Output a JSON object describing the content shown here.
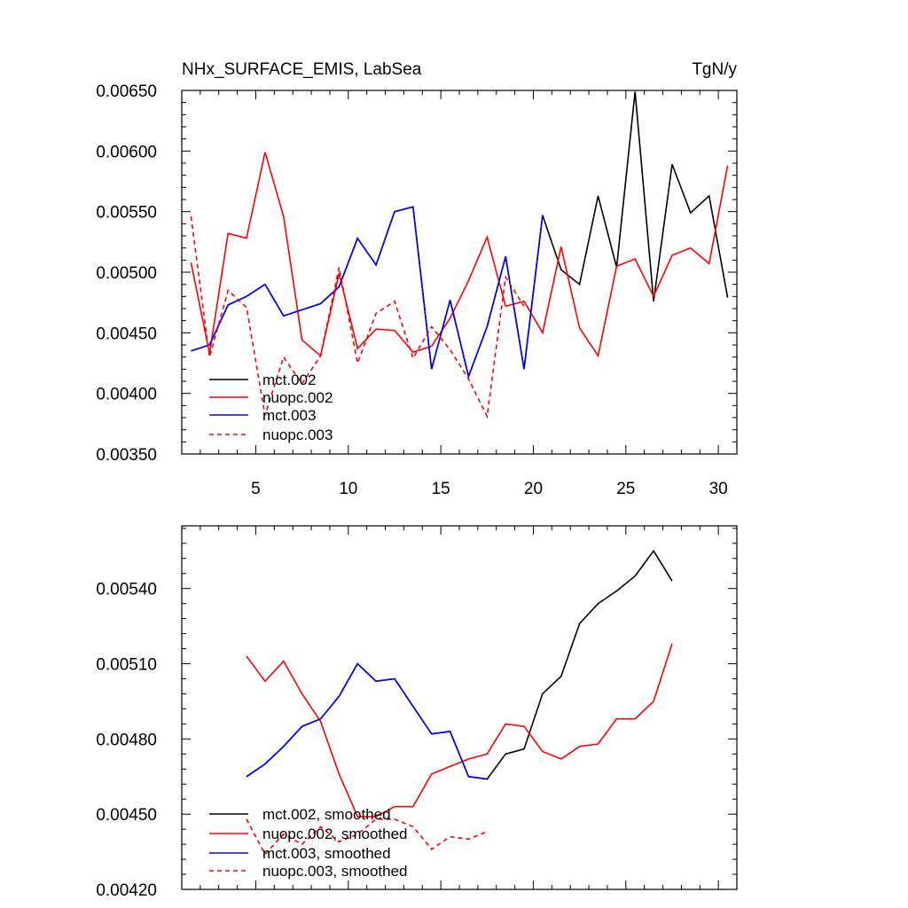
{
  "chart_data": [
    {
      "type": "line",
      "title": "NHx_SURFACE_EMIS, LabSea",
      "units": "TgN/y",
      "xlim": [
        1,
        31
      ],
      "ylim": [
        0.0035,
        0.0065
      ],
      "xticks": [
        5,
        10,
        15,
        20,
        25,
        30
      ],
      "yticks": [
        0.0035,
        0.004,
        0.0045,
        0.005,
        0.0055,
        0.006,
        0.0065
      ],
      "ytick_labels": [
        "0.00350",
        "0.00400",
        "0.00450",
        "0.00500",
        "0.00550",
        "0.00600",
        "0.00650"
      ],
      "legend_position": "bottom-left",
      "series": [
        {
          "name": "mct.002",
          "color": "#000000",
          "dash": "solid",
          "x": [
            1.5,
            2.5,
            3.5,
            4.5,
            5.5,
            6.5,
            7.5,
            8.5,
            9.5,
            10.5,
            11.5,
            12.5,
            13.5,
            14.5,
            15.5,
            16.5,
            17.5,
            18.5,
            19.5,
            20.5,
            21.5,
            22.5,
            23.5,
            24.5,
            25.5,
            26.5,
            27.5,
            28.5,
            29.5,
            30.5
          ],
          "values": [
            0.00435,
            0.0044,
            0.00473,
            0.0048,
            0.0049,
            0.00464,
            0.00469,
            0.00474,
            0.00488,
            0.00528,
            0.00506,
            0.0055,
            0.00554,
            0.0042,
            0.00477,
            0.00414,
            0.00455,
            0.00513,
            0.0042,
            0.00547,
            0.00502,
            0.0049,
            0.00563,
            0.00504,
            0.00649,
            0.00476,
            0.00589,
            0.00549,
            0.00563,
            0.00479
          ]
        },
        {
          "name": "nuopc.002",
          "color": "#ff0000",
          "dash": "solid",
          "x": [
            1.5,
            2.5,
            3.5,
            4.5,
            5.5,
            6.5,
            7.5,
            8.5,
            9.5,
            10.5,
            11.5,
            12.5,
            13.5,
            14.5,
            15.5,
            16.5,
            17.5,
            18.5,
            19.5,
            20.5,
            21.5,
            22.5,
            23.5,
            24.5,
            25.5,
            26.5,
            27.5,
            28.5,
            29.5,
            30.5
          ],
          "values": [
            0.00508,
            0.00433,
            0.00532,
            0.00528,
            0.00599,
            0.00546,
            0.00444,
            0.00431,
            0.00499,
            0.00437,
            0.00453,
            0.00452,
            0.00434,
            0.00439,
            0.00462,
            0.00493,
            0.00529,
            0.00472,
            0.00476,
            0.0045,
            0.00521,
            0.00454,
            0.00431,
            0.00505,
            0.00511,
            0.0048,
            0.00514,
            0.0052,
            0.00507,
            0.00588
          ]
        },
        {
          "name": "mct.003",
          "color": "#0000ff",
          "dash": "solid",
          "x": [
            1.5,
            2.5,
            3.5,
            4.5,
            5.5,
            6.5,
            7.5,
            8.5,
            9.5,
            10.5,
            11.5,
            12.5,
            13.5,
            14.5,
            15.5,
            16.5,
            17.5,
            18.5,
            19.5,
            20.5
          ],
          "values": [
            0.00435,
            0.0044,
            0.00473,
            0.0048,
            0.0049,
            0.00464,
            0.00469,
            0.00474,
            0.00488,
            0.00528,
            0.00506,
            0.0055,
            0.00554,
            0.0042,
            0.00477,
            0.00414,
            0.00455,
            0.00513,
            0.0042,
            0.00547
          ]
        },
        {
          "name": "nuopc.003",
          "color": "#ff0000",
          "dash": "dashed",
          "x": [
            1.5,
            2.5,
            3.5,
            4.5,
            5.5,
            6.5,
            7.5,
            8.5,
            9.5,
            10.5,
            11.5,
            12.5,
            13.5,
            14.5,
            15.5,
            16.5,
            17.5,
            18.5,
            19.5
          ],
          "values": [
            0.00546,
            0.0043,
            0.00485,
            0.00471,
            0.00382,
            0.0043,
            0.00408,
            0.00431,
            0.00504,
            0.00425,
            0.00466,
            0.00476,
            0.00429,
            0.00455,
            0.00436,
            0.00412,
            0.00381,
            0.00496,
            0.00472
          ]
        }
      ]
    },
    {
      "type": "line",
      "title": "",
      "xlim": [
        1,
        31
      ],
      "ylim": [
        0.0042,
        0.00565
      ],
      "xticks": [
        5,
        10,
        15,
        20,
        25,
        30
      ],
      "yticks": [
        0.0042,
        0.0045,
        0.0048,
        0.0051,
        0.0054
      ],
      "ytick_labels": [
        "0.00420",
        "0.00450",
        "0.00480",
        "0.00510",
        "0.00540"
      ],
      "legend_position": "bottom-left",
      "series": [
        {
          "name": "mct.002, smoothed",
          "color": "#000000",
          "dash": "solid",
          "x": [
            4.5,
            5.5,
            6.5,
            7.5,
            8.5,
            9.5,
            10.5,
            11.5,
            12.5,
            13.5,
            14.5,
            15.5,
            16.5,
            17.5,
            18.5,
            19.5,
            20.5,
            21.5,
            22.5,
            23.5,
            24.5,
            25.5,
            26.5,
            27.5
          ],
          "values": [
            0.00465,
            0.0047,
            0.00477,
            0.00485,
            0.00488,
            0.00497,
            0.0051,
            0.00503,
            0.00504,
            0.00493,
            0.00482,
            0.00483,
            0.00465,
            0.00464,
            0.00474,
            0.00476,
            0.00498,
            0.00505,
            0.00526,
            0.00534,
            0.00539,
            0.00545,
            0.00555,
            0.00543
          ]
        },
        {
          "name": "nuopc.002, smoothed",
          "color": "#ff0000",
          "dash": "solid",
          "x": [
            4.5,
            5.5,
            6.5,
            7.5,
            8.5,
            9.5,
            10.5,
            11.5,
            12.5,
            13.5,
            14.5,
            15.5,
            16.5,
            17.5,
            18.5,
            19.5,
            20.5,
            21.5,
            22.5,
            23.5,
            24.5,
            25.5,
            26.5,
            27.5
          ],
          "values": [
            0.00513,
            0.00503,
            0.00511,
            0.00498,
            0.00487,
            0.00466,
            0.00449,
            0.00449,
            0.00453,
            0.00453,
            0.00466,
            0.00469,
            0.00472,
            0.00474,
            0.00486,
            0.00485,
            0.00475,
            0.00472,
            0.00477,
            0.00478,
            0.00488,
            0.00488,
            0.00495,
            0.00518
          ]
        },
        {
          "name": "mct.003, smoothed",
          "color": "#0000ff",
          "dash": "solid",
          "x": [
            4.5,
            5.5,
            6.5,
            7.5,
            8.5,
            9.5,
            10.5,
            11.5,
            12.5,
            13.5,
            14.5,
            15.5,
            16.5,
            17.5
          ],
          "values": [
            0.00465,
            0.0047,
            0.00477,
            0.00485,
            0.00488,
            0.00497,
            0.0051,
            0.00503,
            0.00504,
            0.00493,
            0.00482,
            0.00483,
            0.00465,
            0.00464
          ]
        },
        {
          "name": "nuopc.003, smoothed",
          "color": "#ff0000",
          "dash": "dashed",
          "x": [
            4.5,
            5.5,
            6.5,
            7.5,
            8.5,
            9.5,
            10.5,
            11.5,
            12.5,
            13.5,
            14.5,
            15.5,
            16.5,
            17.5
          ],
          "values": [
            0.00448,
            0.00434,
            0.00442,
            0.00438,
            0.00445,
            0.00439,
            0.00442,
            0.00448,
            0.00448,
            0.00445,
            0.00436,
            0.00441,
            0.0044,
            0.00443
          ]
        }
      ]
    }
  ]
}
